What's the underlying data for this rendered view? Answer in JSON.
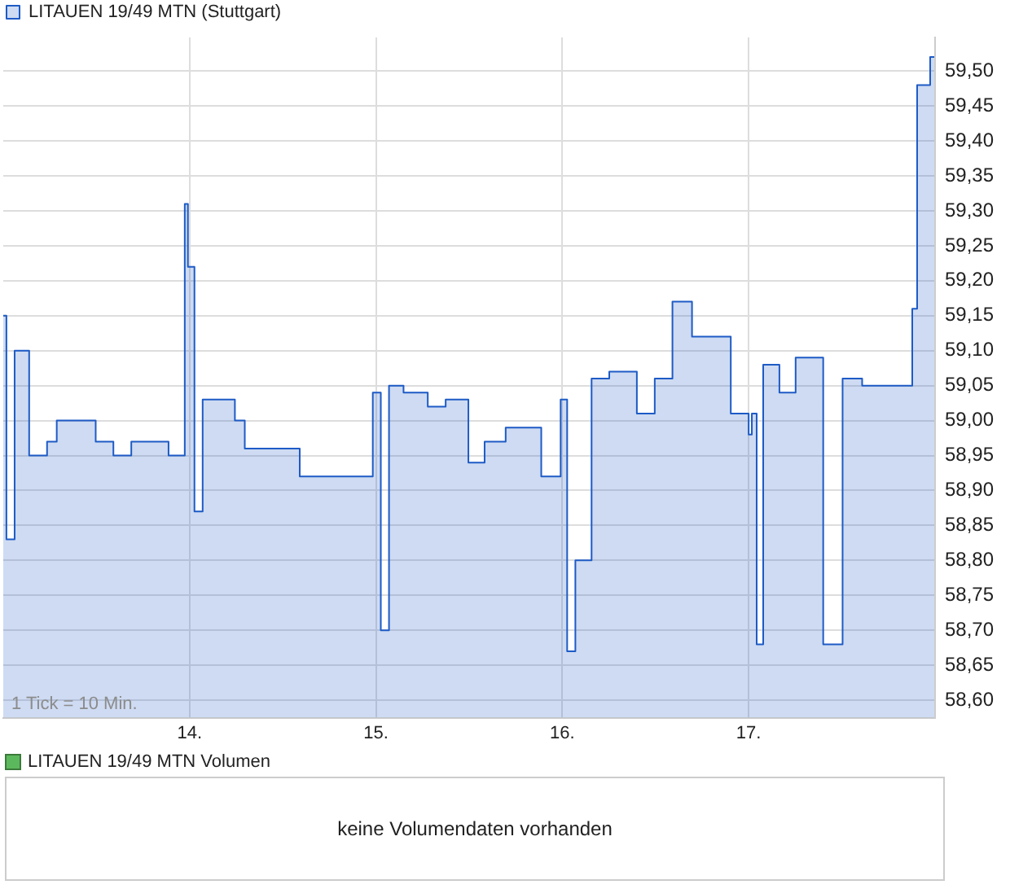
{
  "chart_data": [
    {
      "type": "area",
      "legend": "top left",
      "grid": true,
      "xlim": [
        13,
        18
      ],
      "ylim": [
        58.575,
        59.548
      ],
      "xticks": [
        {
          "value": 14,
          "label": "14."
        },
        {
          "value": 15,
          "label": "15."
        },
        {
          "value": 16,
          "label": "16."
        },
        {
          "value": 17,
          "label": "17."
        }
      ],
      "yticks": [
        {
          "value": 58.6,
          "label": "58,60"
        },
        {
          "value": 58.65,
          "label": "58,65"
        },
        {
          "value": 58.7,
          "label": "58,70"
        },
        {
          "value": 58.75,
          "label": "58,75"
        },
        {
          "value": 58.8,
          "label": "58,80"
        },
        {
          "value": 58.85,
          "label": "58,85"
        },
        {
          "value": 58.9,
          "label": "58,90"
        },
        {
          "value": 58.95,
          "label": "58,95"
        },
        {
          "value": 59.0,
          "label": "59,00"
        },
        {
          "value": 59.05,
          "label": "59,05"
        },
        {
          "value": 59.1,
          "label": "59,10"
        },
        {
          "value": 59.15,
          "label": "59,15"
        },
        {
          "value": 59.2,
          "label": "59,20"
        },
        {
          "value": 59.25,
          "label": "59,25"
        },
        {
          "value": 59.3,
          "label": "59,30"
        },
        {
          "value": 59.35,
          "label": "59,35"
        },
        {
          "value": 59.4,
          "label": "59,40"
        },
        {
          "value": 59.45,
          "label": "59,45"
        },
        {
          "value": 59.5,
          "label": "59,50"
        }
      ],
      "annotations": [
        "1 Tick = 10 Min."
      ],
      "series": [
        {
          "name": "LITAUEN 19/49 MTN (Stuttgart)",
          "color": "#1e5bc6",
          "x": [
            13.0,
            13.017,
            13.017,
            13.061,
            13.061,
            13.139,
            13.139,
            13.235,
            13.235,
            13.287,
            13.287,
            13.496,
            13.496,
            13.591,
            13.591,
            13.687,
            13.687,
            13.887,
            13.887,
            13.974,
            13.974,
            13.991,
            13.991,
            14.026,
            14.026,
            14.07,
            14.07,
            14.243,
            14.243,
            14.296,
            14.296,
            14.591,
            14.591,
            14.983,
            14.983,
            15.026,
            15.026,
            15.07,
            15.07,
            15.148,
            15.148,
            15.278,
            15.278,
            15.374,
            15.374,
            15.496,
            15.496,
            15.583,
            15.583,
            15.696,
            15.696,
            15.887,
            15.887,
            15.991,
            15.991,
            16.026,
            16.026,
            16.07,
            16.07,
            16.157,
            16.157,
            16.252,
            16.252,
            16.4,
            16.4,
            16.496,
            16.496,
            16.591,
            16.591,
            16.696,
            16.696,
            16.904,
            16.904,
            17.0,
            17.0,
            17.017,
            17.017,
            17.043,
            17.043,
            17.078,
            17.078,
            17.165,
            17.165,
            17.252,
            17.252,
            17.4,
            17.4,
            17.504,
            17.504,
            17.609,
            17.609,
            17.878,
            17.878,
            17.904,
            17.904,
            17.974,
            17.974,
            17.996
          ],
          "values": [
            59.15,
            59.15,
            58.83,
            58.83,
            59.1,
            59.1,
            58.95,
            58.95,
            58.97,
            58.97,
            59.0,
            59.0,
            58.97,
            58.97,
            58.95,
            58.95,
            58.97,
            58.97,
            58.95,
            58.95,
            59.31,
            59.31,
            59.22,
            59.22,
            58.87,
            58.87,
            59.03,
            59.03,
            59.0,
            59.0,
            58.96,
            58.96,
            58.92,
            58.92,
            59.04,
            59.04,
            58.7,
            58.7,
            59.05,
            59.05,
            59.04,
            59.04,
            59.02,
            59.02,
            59.03,
            59.03,
            58.94,
            58.94,
            58.97,
            58.97,
            58.99,
            58.99,
            58.92,
            58.92,
            59.03,
            59.03,
            58.67,
            58.67,
            58.8,
            58.8,
            59.06,
            59.06,
            59.07,
            59.07,
            59.01,
            59.01,
            59.06,
            59.06,
            59.17,
            59.17,
            59.12,
            59.12,
            59.01,
            59.01,
            58.98,
            58.98,
            59.01,
            59.01,
            58.68,
            58.68,
            59.08,
            59.08,
            59.04,
            59.04,
            59.09,
            59.09,
            58.68,
            58.68,
            59.06,
            59.06,
            59.05,
            59.05,
            59.16,
            59.16,
            59.48,
            59.48,
            59.52,
            59.52
          ]
        }
      ]
    },
    {
      "type": "other",
      "title": "LITAUEN 19/49 MTN Volumen",
      "annotations": [
        "keine Volumendaten vorhanden"
      ]
    }
  ]
}
